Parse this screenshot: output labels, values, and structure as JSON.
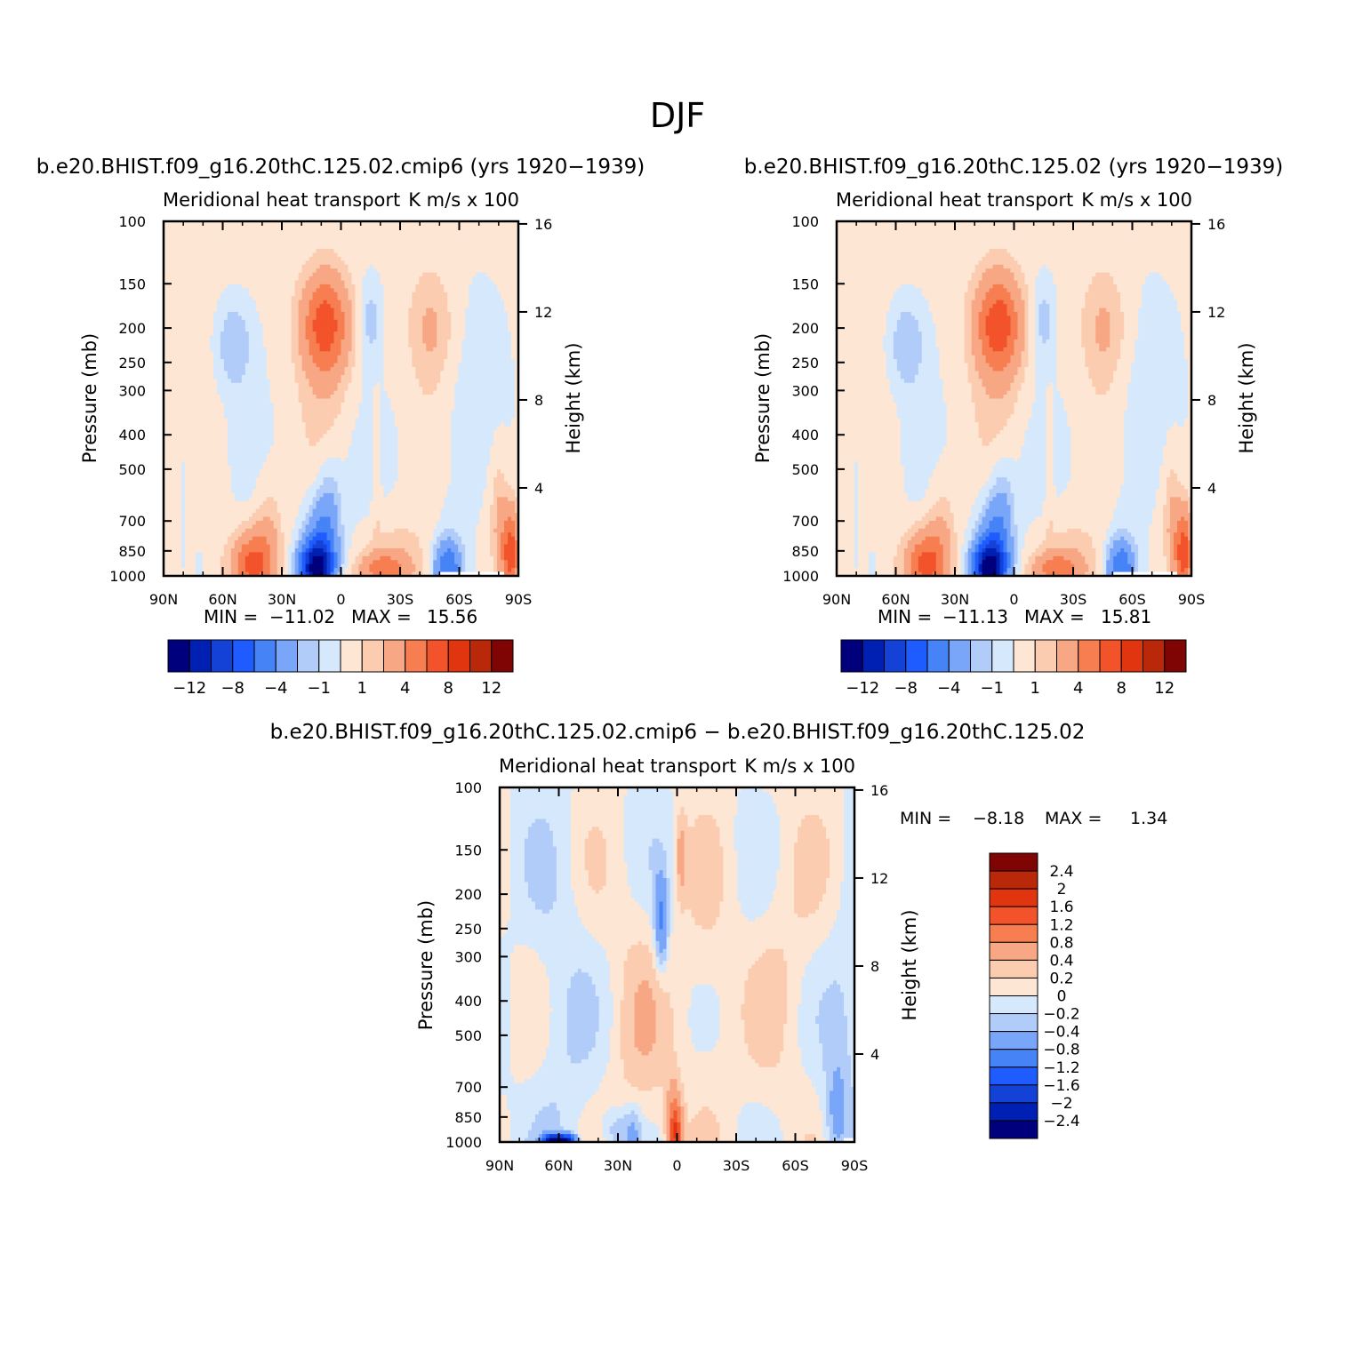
{
  "figure": {
    "title": "DJF"
  },
  "chart_data": [
    {
      "type": "heatmap",
      "title": "b.e20.BHIST.f09_g16.20thC.125.02.cmip6 (yrs 1920−1939)",
      "left_subtitle": "Meridional heat transport",
      "right_subtitle": "K m/s x 100",
      "xlabel": "",
      "ylabel": "Pressure (mb)",
      "ylabel_right": "Height (km)",
      "x_ticks": [
        "90N",
        "60N",
        "30N",
        "0",
        "30S",
        "60S",
        "90S"
      ],
      "y_ticks": [
        "100",
        "150",
        "200",
        "250",
        "300",
        "400",
        "500",
        "700",
        "850",
        "1000"
      ],
      "y_ticks_right": [
        "16",
        "12",
        "8",
        "4"
      ],
      "xlim": [
        90,
        -90
      ],
      "ylim": [
        1000,
        100
      ],
      "y_scale": "log",
      "grid": false,
      "stats": {
        "min_label": "MIN =",
        "min": "−11.02",
        "max_label": "MAX =",
        "max": "15.56"
      },
      "levels": [
        -12,
        -10,
        -8,
        -6,
        -4,
        -2,
        -1,
        0,
        1,
        2,
        4,
        6,
        8,
        10,
        12
      ],
      "colorbar_labels": [
        "−12",
        "−8",
        "−4",
        "−1",
        "1",
        "4",
        "8",
        "12"
      ],
      "colorbar_orientation": "horizontal",
      "features": [
        {
          "lat": 12,
          "p": 930,
          "value": -11.02,
          "note": "tropical low-level minimum"
        },
        {
          "lat": 12,
          "p": 750,
          "value": -4
        },
        {
          "lat": 44,
          "p": 930,
          "value": 6
        },
        {
          "lat": 37,
          "p": 760,
          "value": 1.5
        },
        {
          "lat": 8,
          "p": 200,
          "value": 6.5
        },
        {
          "lat": 55,
          "p": 210,
          "value": -2
        },
        {
          "lat": -22,
          "p": 940,
          "value": 4
        },
        {
          "lat": -54,
          "p": 940,
          "value": -5
        },
        {
          "lat": -46,
          "p": 200,
          "value": 1.5
        },
        {
          "lat": -85,
          "p": 850,
          "value": 6
        }
      ]
    },
    {
      "type": "heatmap",
      "title": "b.e20.BHIST.f09_g16.20thC.125.02 (yrs 1920−1939)",
      "left_subtitle": "Meridional heat transport",
      "right_subtitle": "K m/s x 100",
      "xlabel": "",
      "ylabel": "Pressure (mb)",
      "ylabel_right": "Height (km)",
      "x_ticks": [
        "90N",
        "60N",
        "30N",
        "0",
        "30S",
        "60S",
        "90S"
      ],
      "y_ticks": [
        "100",
        "150",
        "200",
        "250",
        "300",
        "400",
        "500",
        "700",
        "850",
        "1000"
      ],
      "y_ticks_right": [
        "16",
        "12",
        "8",
        "4"
      ],
      "xlim": [
        90,
        -90
      ],
      "ylim": [
        1000,
        100
      ],
      "y_scale": "log",
      "grid": false,
      "stats": {
        "min_label": "MIN =",
        "min": "−11.13",
        "max_label": "MAX =",
        "max": "15.81"
      },
      "levels": [
        -12,
        -10,
        -8,
        -6,
        -4,
        -2,
        -1,
        0,
        1,
        2,
        4,
        6,
        8,
        10,
        12
      ],
      "colorbar_labels": [
        "−12",
        "−8",
        "−4",
        "−1",
        "1",
        "4",
        "8",
        "12"
      ],
      "colorbar_orientation": "horizontal",
      "features": [
        {
          "lat": 12,
          "p": 930,
          "value": -11.13,
          "note": "tropical low-level minimum"
        },
        {
          "lat": 12,
          "p": 750,
          "value": -4
        },
        {
          "lat": 44,
          "p": 930,
          "value": 6
        },
        {
          "lat": 37,
          "p": 760,
          "value": 1.5
        },
        {
          "lat": 8,
          "p": 200,
          "value": 7
        },
        {
          "lat": 55,
          "p": 210,
          "value": -2
        },
        {
          "lat": -22,
          "p": 940,
          "value": 4
        },
        {
          "lat": -54,
          "p": 940,
          "value": -5
        },
        {
          "lat": -46,
          "p": 200,
          "value": 1.5
        },
        {
          "lat": -85,
          "p": 850,
          "value": 6
        }
      ]
    },
    {
      "type": "heatmap",
      "title": "b.e20.BHIST.f09_g16.20thC.125.02.cmip6 − b.e20.BHIST.f09_g16.20thC.125.02",
      "left_subtitle": "Meridional heat transport",
      "right_subtitle": "K m/s x 100",
      "xlabel": "",
      "ylabel": "Pressure (mb)",
      "ylabel_right": "Height (km)",
      "x_ticks": [
        "90N",
        "60N",
        "30N",
        "0",
        "30S",
        "60S",
        "90S"
      ],
      "y_ticks": [
        "100",
        "150",
        "200",
        "250",
        "300",
        "400",
        "500",
        "700",
        "850",
        "1000"
      ],
      "y_ticks_right": [
        "16",
        "12",
        "8",
        "4"
      ],
      "xlim": [
        90,
        -90
      ],
      "ylim": [
        1000,
        100
      ],
      "y_scale": "log",
      "grid": false,
      "stats": {
        "min_label": "MIN =",
        "min": "−8.18",
        "max_label": "MAX =",
        "max": "1.34"
      },
      "levels": [
        -2.4,
        -2,
        -1.6,
        -1.2,
        -0.8,
        -0.4,
        -0.2,
        0,
        0.2,
        0.4,
        0.8,
        1.2,
        1.6,
        2,
        2.4
      ],
      "colorbar_labels": [
        "2.4",
        "2",
        "1.6",
        "1.2",
        "0.8",
        "0.4",
        "0.2",
        "0",
        "−0.2",
        "−0.4",
        "−0.8",
        "−1.2",
        "−1.6",
        "−2",
        "−2.4"
      ],
      "colorbar_orientation": "vertical",
      "features": [
        {
          "lat": 0,
          "p": 950,
          "value": 1.34,
          "note": "equatorial near-surface maximum"
        },
        {
          "lat": 60,
          "p": 990,
          "value": -2.4,
          "note": "high-latitude surface minimum region"
        },
        {
          "lat": 7,
          "p": 230,
          "value": -0.8
        },
        {
          "lat": -2,
          "p": 160,
          "value": 0.4
        },
        {
          "lat": 30,
          "p": 930,
          "value": -0.3
        },
        {
          "lat": -80,
          "p": 850,
          "value": -0.4
        }
      ]
    }
  ],
  "palette": {
    "diverging": [
      "#00007c",
      "#0020b4",
      "#1442d6",
      "#1f5cff",
      "#4683f6",
      "#79a6f8",
      "#b1ccf9",
      "#d6e8fb",
      "#fde6d4",
      "#fcccb0",
      "#f8a784",
      "#f67e51",
      "#f3532b",
      "#e0350f",
      "#b92808",
      "#7f0404"
    ],
    "missing": "#ffffff"
  }
}
